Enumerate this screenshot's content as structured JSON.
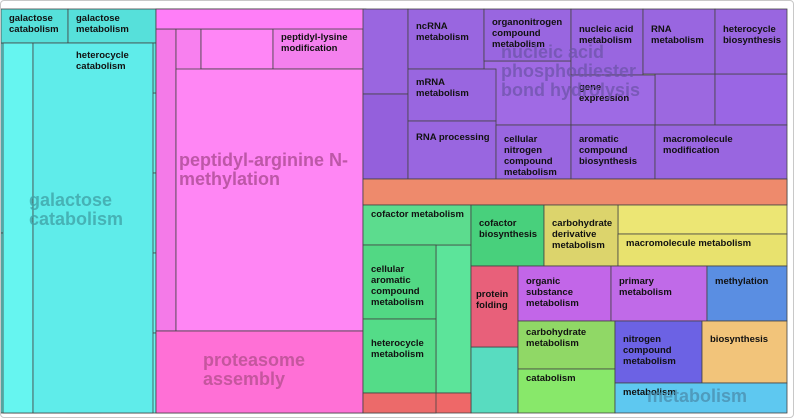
{
  "chart_data": {
    "type": "treemap",
    "groups": [
      {
        "name": "galactose catabolism",
        "color": "#5fe8e2",
        "tiles": [
          {
            "label": "galactose catabolism",
            "color": "#56e0da",
            "value": 1
          },
          {
            "label": "galactose metabolism",
            "color": "#56e0da",
            "value": 1
          },
          {
            "label": "heterocycle catabolism",
            "color": "#5ae6e0",
            "value": 1
          },
          {
            "label": "",
            "color": "#66f5f0",
            "value": 1
          },
          {
            "label": "",
            "color": "#5fecea",
            "value": 1
          }
        ]
      },
      {
        "name": "peptidyl-arginine N-methylation",
        "color": "#ff7cf0",
        "tiles": [
          {
            "label": "peptidyl-lysine modification",
            "color": "#f480ee",
            "value": 1
          },
          {
            "label": "",
            "color": "#ff7ef8",
            "value": 1
          },
          {
            "label": "",
            "color": "#ff86f4",
            "value": 1
          }
        ]
      },
      {
        "name": "proteasome assembly",
        "color": "#ff6ed8",
        "tiles": [
          {
            "label": "",
            "color": "#ff70d6",
            "value": 1
          }
        ]
      },
      {
        "name": "nucleic acid phosphodiester bond hydrolysis",
        "color": "#9a64e0",
        "tiles": [
          {
            "label": "ncRNA metabolism",
            "color": "#9966e0",
            "value": 1
          },
          {
            "label": "organonitrogen compound metabolism",
            "color": "#9966e0",
            "value": 1
          },
          {
            "label": "nucleic acid metabolism",
            "color": "#9966e0",
            "value": 1
          },
          {
            "label": "RNA metabolism",
            "color": "#9966e0",
            "value": 1
          },
          {
            "label": "heterocycle biosynthesis",
            "color": "#9966e0",
            "value": 1
          },
          {
            "label": "mRNA metabolism",
            "color": "#9966e0",
            "value": 1
          },
          {
            "label": "gene expression",
            "color": "#9e6ae4",
            "value": 1
          },
          {
            "label": "RNA processing",
            "color": "#9966e0",
            "value": 1
          },
          {
            "label": "cellular nitrogen compound metabolism",
            "color": "#9966e0",
            "value": 1
          },
          {
            "label": "aromatic compound biosynthesis",
            "color": "#9966e0",
            "value": 1
          },
          {
            "label": "macromolecule modification",
            "color": "#9966e0",
            "value": 1
          }
        ]
      },
      {
        "name": "",
        "color": "#f28c6c",
        "tiles": [
          {
            "label": "",
            "color": "#ee8a6c",
            "value": 1
          }
        ]
      },
      {
        "name": "",
        "color": "#4cd88a",
        "tiles": [
          {
            "label": "cofactor metabolism",
            "color": "#5cdc8e",
            "value": 1
          },
          {
            "label": "cofactor biosynthesis",
            "color": "#48d07c",
            "value": 1
          },
          {
            "label": "cellular aromatic compound metabolism",
            "color": "#52d884",
            "value": 1
          },
          {
            "label": "heterocycle metabolism",
            "color": "#54dc88",
            "value": 1
          }
        ]
      },
      {
        "name": "",
        "color": "#e8e070",
        "tiles": [
          {
            "label": "carbohydrate derivative metabolism",
            "color": "#dcd46c",
            "value": 1
          },
          {
            "label": "macromolecule metabolism",
            "color": "#e8e26e",
            "value": 1
          }
        ]
      },
      {
        "name": "",
        "color": "#e8607a",
        "tiles": [
          {
            "label": "protein folding",
            "color": "#e8607a",
            "value": 1
          }
        ]
      },
      {
        "name": "",
        "color": "#c060e6",
        "tiles": [
          {
            "label": "organic substance metabolism",
            "color": "#c266e8",
            "value": 1
          },
          {
            "label": "primary metabolism",
            "color": "#c06ae8",
            "value": 1
          }
        ]
      },
      {
        "name": "",
        "color": "#5a8ee0",
        "tiles": [
          {
            "label": "methylation",
            "color": "#5a8ee2",
            "value": 1
          }
        ]
      },
      {
        "name": "",
        "color": "#8cd860",
        "tiles": [
          {
            "label": "carbohydrate metabolism",
            "color": "#90d866",
            "value": 1
          },
          {
            "label": "catabolism",
            "color": "#88e86a",
            "value": 1
          }
        ]
      },
      {
        "name": "",
        "color": "#6a5ee0",
        "tiles": [
          {
            "label": "nitrogen compound metabolism",
            "color": "#6c62e4",
            "value": 1
          }
        ]
      },
      {
        "name": "",
        "color": "#f2c87a",
        "tiles": [
          {
            "label": "biosynthesis",
            "color": "#f2c47a",
            "value": 1
          }
        ]
      },
      {
        "name": "metabolism",
        "color": "#5ec8ee",
        "tiles": [
          {
            "label": "metabolism",
            "color": "#5ec8f0",
            "value": 1
          }
        ]
      }
    ]
  }
}
